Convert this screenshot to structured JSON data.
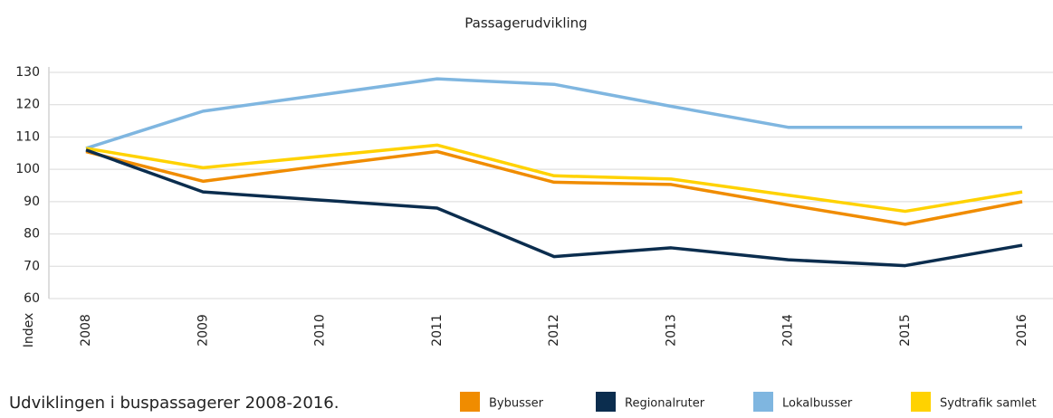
{
  "chart_data": {
    "type": "line",
    "title": "Passagerudvikling",
    "ylabel": "Index",
    "caption": "Udviklingen i buspassagerer 2008-2016.",
    "categories": [
      "2008",
      "2009",
      "2010",
      "2011",
      "2012",
      "2013",
      "2014",
      "2015",
      "2016"
    ],
    "series": [
      {
        "name": "Bybusser",
        "color": "#f08c00",
        "values": [
          105.5,
          96.3,
          101,
          105.5,
          96,
          95.3,
          89,
          83,
          90
        ]
      },
      {
        "name": "Regionalruter",
        "color": "#0b2d4e",
        "values": [
          106,
          93,
          90.5,
          88,
          73,
          75.7,
          72,
          70.2,
          76.5
        ]
      },
      {
        "name": "Lokalbusser",
        "color": "#7fb6e0",
        "values": [
          106.5,
          118,
          123,
          128,
          126.3,
          119.5,
          113,
          113,
          113
        ]
      },
      {
        "name": "Sydtrafik samlet",
        "color": "#ffd200",
        "values": [
          106.5,
          100.5,
          104,
          107.5,
          98,
          97,
          92,
          87,
          93
        ]
      }
    ],
    "ylim": [
      60,
      130
    ],
    "yticks": [
      60,
      70,
      80,
      90,
      100,
      110,
      120,
      130
    ],
    "grid": true,
    "legend": "bottom"
  }
}
